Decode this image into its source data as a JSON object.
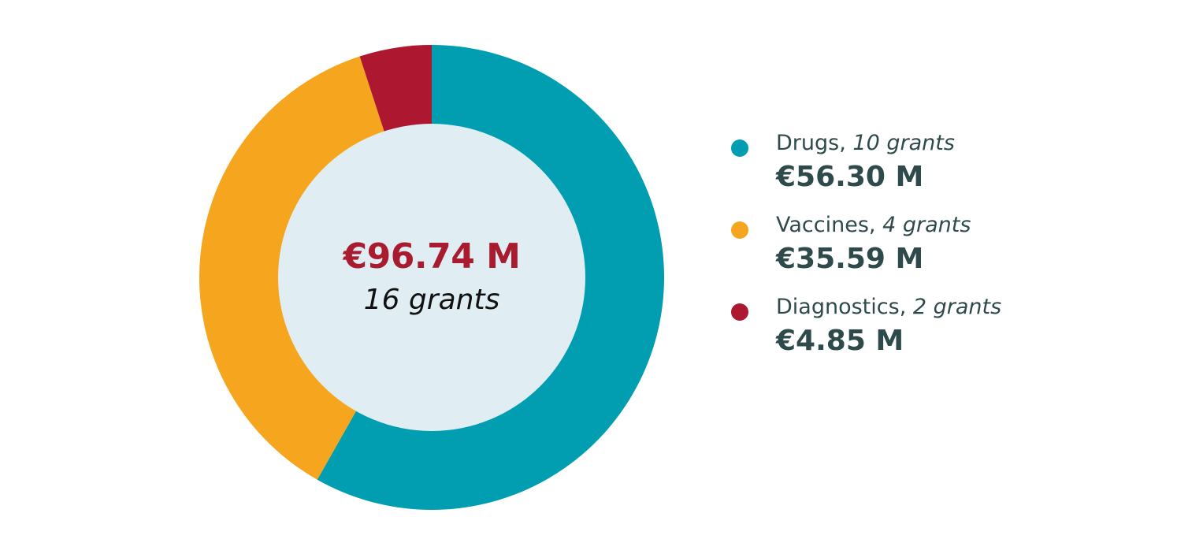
{
  "chart_data": {
    "type": "pie",
    "variant": "donut",
    "categories": [
      "Drugs",
      "Vaccines",
      "Diagnostics"
    ],
    "values": [
      56.3,
      35.59,
      4.85
    ],
    "grants": [
      10,
      4,
      2
    ],
    "colors": [
      "#009EB0",
      "#F6A51E",
      "#AD1830"
    ],
    "center_color": "#E0EEF3",
    "legend_position": "right"
  },
  "center": {
    "total": "€96.74 M",
    "grants": "16 grants"
  },
  "legend": [
    {
      "label": "Drugs",
      "grants": "10 grants",
      "value": "€56.30 M"
    },
    {
      "label": "Vaccines",
      "grants": "4 grants",
      "value": "€35.59 M"
    },
    {
      "label": "Diagnostics",
      "grants": "2 grants",
      "value": "€4.85 M"
    }
  ]
}
